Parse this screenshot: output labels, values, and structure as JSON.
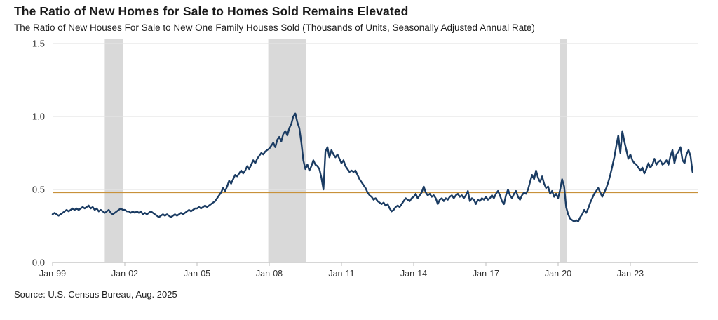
{
  "header": {
    "title": "The Ratio of New Homes for Sale to Homes Sold Remains Elevated",
    "subtitle": "The Ratio of New Houses For Sale to New One Family Houses Sold (Thousands of Units, Seasonally Adjusted Annual Rate)"
  },
  "source": "Source: U.S. Census Bureau, Aug. 2025",
  "colors": {
    "line": "#1b3c63",
    "reference_line": "#c8913a",
    "recession_band": "#d9d9d9",
    "gridline": "#e5e5e5",
    "axis": "#c8c8c8",
    "tick_text": "#333333"
  },
  "chart_data": {
    "type": "line",
    "title": "The Ratio of New Homes for Sale to Homes Sold Remains Elevated",
    "subtitle": "The Ratio of New Houses For Sale to New One Family Houses Sold (Thousands of Units, Seasonally Adjusted Annual Rate)",
    "frequency": "monthly",
    "x_start": "Jan-1999",
    "x_end": "Aug-2025",
    "x_tick_labels": [
      "Jan-99",
      "Jan-02",
      "Jan-05",
      "Jan-08",
      "Jan-11",
      "Jan-14",
      "Jan-17",
      "Jan-20",
      "Jan-23"
    ],
    "x_tick_interval_months": 36,
    "y_ticks": [
      "0.0",
      "0.5",
      "1.0",
      "1.5"
    ],
    "ylim": [
      0,
      1.5
    ],
    "grid": "horizontal",
    "legend": "none",
    "reference_line_value": 0.48,
    "recession_bands_months": [
      [
        26,
        35
      ],
      [
        107.5,
        126.5
      ],
      [
        253,
        256.5
      ]
    ],
    "series": [
      {
        "name": "Ratio of New Houses For Sale to New One Family Houses Sold",
        "start": "1999-01",
        "values": [
          0.33,
          0.34,
          0.33,
          0.32,
          0.33,
          0.34,
          0.35,
          0.36,
          0.35,
          0.36,
          0.37,
          0.36,
          0.37,
          0.36,
          0.37,
          0.38,
          0.37,
          0.38,
          0.39,
          0.37,
          0.38,
          0.36,
          0.37,
          0.35,
          0.36,
          0.35,
          0.34,
          0.35,
          0.36,
          0.34,
          0.33,
          0.34,
          0.35,
          0.36,
          0.37,
          0.36,
          0.36,
          0.35,
          0.35,
          0.34,
          0.35,
          0.34,
          0.35,
          0.34,
          0.35,
          0.33,
          0.34,
          0.33,
          0.34,
          0.35,
          0.34,
          0.33,
          0.32,
          0.31,
          0.32,
          0.33,
          0.32,
          0.33,
          0.32,
          0.31,
          0.32,
          0.33,
          0.32,
          0.33,
          0.34,
          0.33,
          0.34,
          0.35,
          0.36,
          0.35,
          0.36,
          0.37,
          0.37,
          0.38,
          0.37,
          0.38,
          0.39,
          0.38,
          0.39,
          0.4,
          0.41,
          0.42,
          0.44,
          0.46,
          0.48,
          0.51,
          0.49,
          0.52,
          0.56,
          0.54,
          0.57,
          0.6,
          0.59,
          0.61,
          0.63,
          0.61,
          0.63,
          0.66,
          0.64,
          0.67,
          0.7,
          0.68,
          0.71,
          0.73,
          0.75,
          0.74,
          0.76,
          0.77,
          0.78,
          0.8,
          0.82,
          0.79,
          0.84,
          0.86,
          0.83,
          0.88,
          0.9,
          0.87,
          0.92,
          0.95,
          1.0,
          1.02,
          0.96,
          0.92,
          0.82,
          0.7,
          0.64,
          0.67,
          0.63,
          0.66,
          0.7,
          0.67,
          0.66,
          0.64,
          0.58,
          0.5,
          0.76,
          0.79,
          0.72,
          0.77,
          0.74,
          0.72,
          0.74,
          0.71,
          0.68,
          0.7,
          0.66,
          0.64,
          0.62,
          0.63,
          0.62,
          0.63,
          0.6,
          0.57,
          0.55,
          0.53,
          0.51,
          0.48,
          0.46,
          0.45,
          0.43,
          0.44,
          0.42,
          0.41,
          0.4,
          0.41,
          0.39,
          0.4,
          0.37,
          0.35,
          0.36,
          0.38,
          0.39,
          0.38,
          0.4,
          0.42,
          0.44,
          0.43,
          0.42,
          0.44,
          0.45,
          0.47,
          0.44,
          0.46,
          0.48,
          0.52,
          0.48,
          0.46,
          0.47,
          0.45,
          0.46,
          0.44,
          0.4,
          0.43,
          0.44,
          0.42,
          0.44,
          0.43,
          0.45,
          0.46,
          0.44,
          0.46,
          0.47,
          0.45,
          0.46,
          0.44,
          0.46,
          0.49,
          0.42,
          0.44,
          0.43,
          0.4,
          0.43,
          0.42,
          0.44,
          0.43,
          0.45,
          0.43,
          0.44,
          0.46,
          0.44,
          0.47,
          0.49,
          0.46,
          0.42,
          0.4,
          0.46,
          0.5,
          0.46,
          0.44,
          0.47,
          0.49,
          0.45,
          0.43,
          0.46,
          0.48,
          0.47,
          0.5,
          0.55,
          0.6,
          0.57,
          0.63,
          0.58,
          0.55,
          0.59,
          0.54,
          0.51,
          0.52,
          0.47,
          0.49,
          0.45,
          0.47,
          0.44,
          0.5,
          0.57,
          0.52,
          0.38,
          0.33,
          0.3,
          0.29,
          0.28,
          0.29,
          0.28,
          0.31,
          0.33,
          0.36,
          0.34,
          0.37,
          0.41,
          0.44,
          0.47,
          0.49,
          0.51,
          0.48,
          0.45,
          0.48,
          0.51,
          0.55,
          0.6,
          0.66,
          0.72,
          0.8,
          0.87,
          0.75,
          0.9,
          0.83,
          0.77,
          0.71,
          0.74,
          0.7,
          0.68,
          0.67,
          0.65,
          0.63,
          0.65,
          0.61,
          0.64,
          0.68,
          0.65,
          0.67,
          0.71,
          0.67,
          0.69,
          0.7,
          0.67,
          0.68,
          0.7,
          0.67,
          0.73,
          0.77,
          0.68,
          0.74,
          0.76,
          0.79,
          0.7,
          0.68,
          0.74,
          0.77,
          0.73,
          0.62
        ]
      }
    ]
  }
}
